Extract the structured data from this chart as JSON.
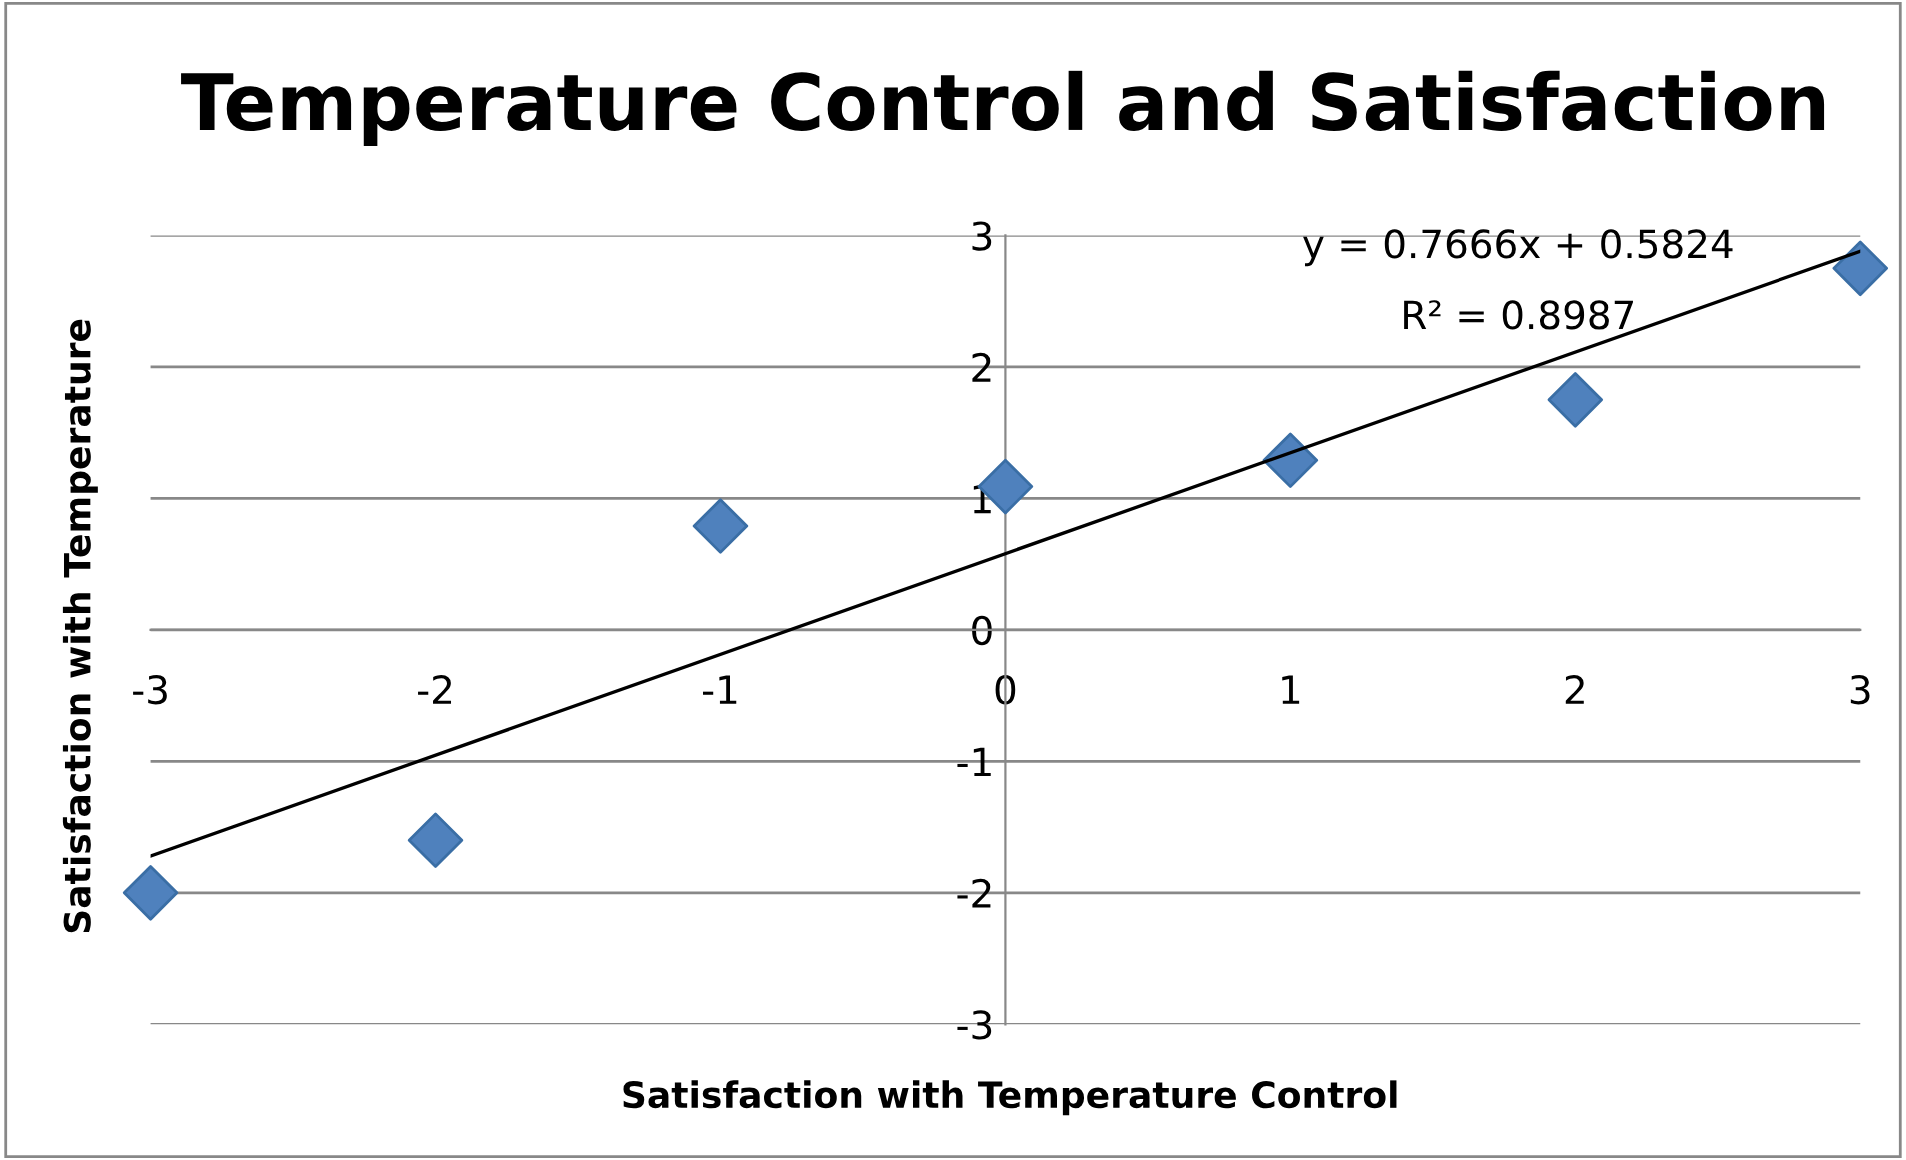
{
  "chart_data": {
    "type": "scatter",
    "title": "Temperature Control and Satisfaction",
    "xlabel": "Satisfaction with Temperature Control",
    "ylabel": "Satisfaction with Temperature",
    "x": [
      -3,
      -2,
      -1,
      0,
      1,
      2,
      3
    ],
    "series": [
      {
        "color": "#4f81bd",
        "marker": "diamond",
        "values": [
          -2.0,
          -1.6,
          0.79,
          1.09,
          1.29,
          1.75,
          2.75
        ]
      },
      {
        "type": "line",
        "color": "#000000",
        "x": [
          -3,
          3
        ],
        "values": [
          -1.72,
          2.88
        ]
      }
    ],
    "xlim": [
      -3,
      3
    ],
    "ylim": [
      -3,
      3
    ],
    "xticks": [
      -3,
      -2,
      -1,
      0,
      1,
      2,
      3
    ],
    "yticks": [
      -3,
      -2,
      -1,
      0,
      1,
      2,
      3
    ],
    "grid": "y",
    "annotations": [
      "y = 0.7666x + 0.5824",
      "R² = 0.8987"
    ]
  }
}
